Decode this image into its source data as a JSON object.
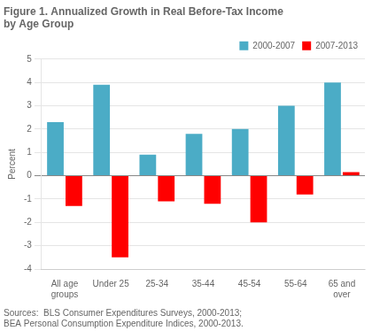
{
  "chart_data": {
    "type": "bar",
    "title": "Figure 1. Annualized Growth in Real Before-Tax Income\nby Age Group",
    "y_label": "Percent",
    "categories": [
      "All age\ngroups",
      "Under 25",
      "25-34",
      "35-44",
      "45-54",
      "55-64",
      "65 and\nover"
    ],
    "series": [
      {
        "name": "2000-2007",
        "color": "#4BACC6",
        "values": [
          2.3,
          3.9,
          0.9,
          1.8,
          2.0,
          3.0,
          4.0
        ]
      },
      {
        "name": "2007-2013",
        "color": "#FF0000",
        "values": [
          -1.3,
          -3.5,
          -1.1,
          -1.2,
          -2.0,
          -0.8,
          0.15
        ]
      }
    ],
    "ylim": [
      -4,
      5
    ],
    "yticks": [
      -4,
      -3,
      -2,
      -1,
      0,
      1,
      2,
      3,
      4,
      5
    ],
    "grid": true,
    "legend": "upper right",
    "annotations": [
      "Sources:  BLS Consumer Expenditures Surveys, 2000-2013;\nBEA Personal Consumption Expenditure Indices, 2000-2013."
    ]
  }
}
